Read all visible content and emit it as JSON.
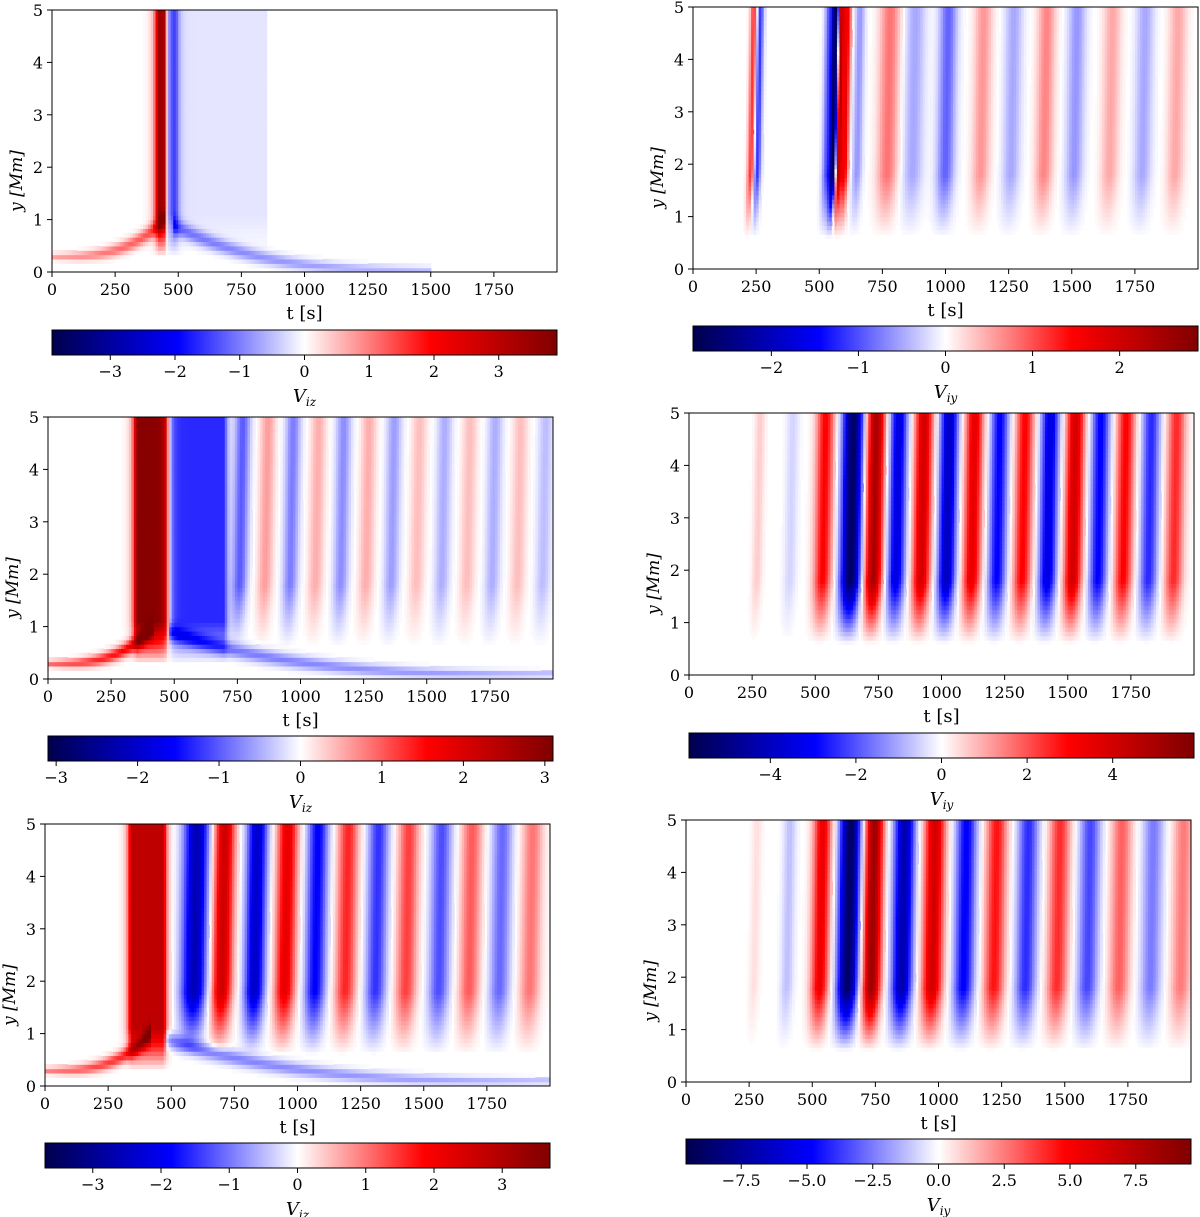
{
  "chart_data": [
    {
      "type": "heatmap",
      "panel": "top-left",
      "xlabel": "t [s]",
      "ylabel": "y [Mm]",
      "xlim": [
        0,
        2000
      ],
      "ylim": [
        0,
        5
      ],
      "xticks": [
        "0",
        "250",
        "500",
        "750",
        "1000",
        "1250",
        "1500",
        "1750"
      ],
      "yticks": [
        "0",
        "1",
        "2",
        "3",
        "4",
        "5"
      ],
      "colorbar": {
        "label": "V",
        "sub": "iz",
        "range": [
          -3.9,
          3.9
        ],
        "ticks": [
          "−3",
          "−2",
          "−1",
          "0",
          "1",
          "2",
          "3"
        ],
        "cmap": "seismic"
      },
      "features": [
        {
          "kind": "band",
          "t0": 420,
          "t1": 445,
          "value": 3.6
        },
        {
          "kind": "band",
          "t0": 460,
          "t1": 490,
          "value": -1.6
        },
        {
          "kind": "decay",
          "t0": 490,
          "t1": 850,
          "value": -0.2
        },
        {
          "kind": "fan",
          "apex_t": 445,
          "apex_y": 1.0,
          "end_t": 0,
          "end_y": 0.3,
          "value": 1.4
        },
        {
          "kind": "fan",
          "apex_t": 480,
          "apex_y": 0.9,
          "end_t": 1500,
          "end_y": 0.05,
          "value": -1.0
        }
      ]
    },
    {
      "type": "heatmap",
      "panel": "top-right",
      "xlabel": "t [s]",
      "ylabel": "y [Mm]",
      "xlim": [
        0,
        2000
      ],
      "ylim": [
        0,
        5
      ],
      "xticks": [
        "0",
        "250",
        "500",
        "750",
        "1000",
        "1250",
        "1500",
        "1750"
      ],
      "yticks": [
        "0",
        "1",
        "2",
        "3",
        "4",
        "5"
      ],
      "colorbar": {
        "label": "V",
        "sub": "iy",
        "range": [
          -2.9,
          2.9
        ],
        "ticks": [
          "−2",
          "−1",
          "0",
          "1",
          "2"
        ],
        "cmap": "seismic"
      },
      "features": [
        {
          "kind": "tilted",
          "t": 230,
          "w": 14,
          "value": 1.2
        },
        {
          "kind": "tilted",
          "t": 255,
          "w": 14,
          "value": -1.2
        },
        {
          "kind": "tilted",
          "t": 530,
          "w": 18,
          "value": -1.0
        },
        {
          "kind": "tilted",
          "t": 555,
          "w": 14,
          "value": -2.8
        },
        {
          "kind": "tilted",
          "t": 575,
          "w": 12,
          "value": 2.4
        },
        {
          "kind": "tilted",
          "t": 600,
          "w": 16,
          "value": 1.6
        },
        {
          "kind": "tilted",
          "t": 650,
          "w": 20,
          "value": -0.6
        },
        {
          "kind": "tilted",
          "t": 770,
          "w": 40,
          "value": 0.8
        },
        {
          "kind": "tilted",
          "t": 870,
          "w": 40,
          "value": -0.5
        },
        {
          "kind": "tilted",
          "t": 1000,
          "w": 35,
          "value": -0.9
        },
        {
          "kind": "tilted",
          "t": 1140,
          "w": 35,
          "value": 0.6
        },
        {
          "kind": "tilted",
          "t": 1260,
          "w": 35,
          "value": -0.5
        },
        {
          "kind": "tilted",
          "t": 1390,
          "w": 35,
          "value": 0.7
        },
        {
          "kind": "tilted",
          "t": 1510,
          "w": 35,
          "value": -0.6
        },
        {
          "kind": "tilted",
          "t": 1650,
          "w": 35,
          "value": 0.5
        },
        {
          "kind": "tilted",
          "t": 1780,
          "w": 35,
          "value": -0.5
        },
        {
          "kind": "tilted",
          "t": 1910,
          "w": 35,
          "value": 0.5
        }
      ]
    },
    {
      "type": "heatmap",
      "panel": "middle-left",
      "xlabel": "t [s]",
      "ylabel": "y [Mm]",
      "xlim": [
        0,
        2000
      ],
      "ylim": [
        0,
        5
      ],
      "xticks": [
        "0",
        "250",
        "500",
        "750",
        "1000",
        "1250",
        "1500",
        "1750"
      ],
      "yticks": [
        "0",
        "1",
        "2",
        "3",
        "4",
        "5"
      ],
      "colorbar": {
        "label": "V",
        "sub": "iz",
        "range": [
          -3.1,
          3.1
        ],
        "ticks": [
          "−3",
          "−2",
          "−1",
          "0",
          "1",
          "2",
          "3"
        ],
        "cmap": "seismic"
      },
      "features": [
        {
          "kind": "band",
          "t0": 350,
          "t1": 470,
          "value": 3.0
        },
        {
          "kind": "band",
          "t0": 470,
          "t1": 700,
          "value": -1.3
        },
        {
          "kind": "tilted",
          "t": 760,
          "w": 30,
          "value": -1.0
        },
        {
          "kind": "tilted",
          "t": 860,
          "w": 30,
          "value": 0.6
        },
        {
          "kind": "tilted",
          "t": 960,
          "w": 30,
          "value": -0.8
        },
        {
          "kind": "tilted",
          "t": 1060,
          "w": 30,
          "value": 0.5
        },
        {
          "kind": "tilted",
          "t": 1160,
          "w": 30,
          "value": -0.7
        },
        {
          "kind": "tilted",
          "t": 1260,
          "w": 30,
          "value": 0.5
        },
        {
          "kind": "tilted",
          "t": 1360,
          "w": 30,
          "value": -0.6
        },
        {
          "kind": "tilted",
          "t": 1460,
          "w": 30,
          "value": 0.4
        },
        {
          "kind": "tilted",
          "t": 1560,
          "w": 30,
          "value": -0.5
        },
        {
          "kind": "tilted",
          "t": 1660,
          "w": 30,
          "value": 0.4
        },
        {
          "kind": "tilted",
          "t": 1760,
          "w": 30,
          "value": -0.5
        },
        {
          "kind": "tilted",
          "t": 1860,
          "w": 30,
          "value": 0.4
        },
        {
          "kind": "tilted",
          "t": 1960,
          "w": 30,
          "value": -0.4
        },
        {
          "kind": "fan",
          "apex_t": 420,
          "apex_y": 1.0,
          "end_t": 0,
          "end_y": 0.3,
          "value": 1.8
        },
        {
          "kind": "fan",
          "apex_t": 480,
          "apex_y": 0.9,
          "end_t": 2000,
          "end_y": 0.1,
          "value": -0.9
        }
      ]
    },
    {
      "type": "heatmap",
      "panel": "middle-right",
      "xlabel": "t [s]",
      "ylabel": "y [Mm]",
      "xlim": [
        0,
        2000
      ],
      "ylim": [
        0,
        5
      ],
      "xticks": [
        "0",
        "250",
        "500",
        "750",
        "1000",
        "1250",
        "1500",
        "1750"
      ],
      "yticks": [
        "0",
        "1",
        "2",
        "3",
        "4",
        "5"
      ],
      "colorbar": {
        "label": "V",
        "sub": "iy",
        "range": [
          -5.9,
          5.9
        ],
        "ticks": [
          "−4",
          "−2",
          "0",
          "2",
          "4"
        ],
        "cmap": "seismic"
      },
      "features": [
        {
          "kind": "tilted",
          "t": 270,
          "w": 20,
          "value": 0.6
        },
        {
          "kind": "tilted",
          "t": 400,
          "w": 25,
          "value": -0.5
        },
        {
          "kind": "tilted",
          "t": 530,
          "w": 35,
          "value": 3.0
        },
        {
          "kind": "tilted",
          "t": 640,
          "w": 40,
          "value": -5.5
        },
        {
          "kind": "tilted",
          "t": 730,
          "w": 35,
          "value": 5.0
        },
        {
          "kind": "tilted",
          "t": 820,
          "w": 35,
          "value": -3.5
        },
        {
          "kind": "tilted",
          "t": 920,
          "w": 35,
          "value": 4.0
        },
        {
          "kind": "tilted",
          "t": 1020,
          "w": 35,
          "value": -4.0
        },
        {
          "kind": "tilted",
          "t": 1120,
          "w": 35,
          "value": 3.5
        },
        {
          "kind": "tilted",
          "t": 1220,
          "w": 35,
          "value": -3.0
        },
        {
          "kind": "tilted",
          "t": 1320,
          "w": 35,
          "value": 3.0
        },
        {
          "kind": "tilted",
          "t": 1420,
          "w": 35,
          "value": -3.5
        },
        {
          "kind": "tilted",
          "t": 1520,
          "w": 35,
          "value": 4.0
        },
        {
          "kind": "tilted",
          "t": 1620,
          "w": 35,
          "value": -3.0
        },
        {
          "kind": "tilted",
          "t": 1720,
          "w": 35,
          "value": 3.0
        },
        {
          "kind": "tilted",
          "t": 1820,
          "w": 35,
          "value": -2.5
        },
        {
          "kind": "tilted",
          "t": 1920,
          "w": 35,
          "value": 2.5
        }
      ]
    },
    {
      "type": "heatmap",
      "panel": "bottom-left",
      "xlabel": "t [s]",
      "ylabel": "y [Mm]",
      "xlim": [
        0,
        2000
      ],
      "ylim": [
        0,
        5
      ],
      "xticks": [
        "0",
        "250",
        "500",
        "750",
        "1000",
        "1250",
        "1500",
        "1750"
      ],
      "yticks": [
        "0",
        "1",
        "2",
        "3",
        "4",
        "5"
      ],
      "colorbar": {
        "label": "V",
        "sub": "iz",
        "range": [
          -3.7,
          3.7
        ],
        "ticks": [
          "−3",
          "−2",
          "−1",
          "0",
          "1",
          "2",
          "3"
        ],
        "cmap": "seismic"
      },
      "features": [
        {
          "kind": "band",
          "t0": 340,
          "t1": 470,
          "value": 2.8
        },
        {
          "kind": "tilted",
          "t": 590,
          "w": 50,
          "value": -2.6
        },
        {
          "kind": "tilted",
          "t": 700,
          "w": 40,
          "value": 2.6
        },
        {
          "kind": "tilted",
          "t": 830,
          "w": 40,
          "value": -2.4
        },
        {
          "kind": "tilted",
          "t": 950,
          "w": 40,
          "value": 2.2
        },
        {
          "kind": "tilted",
          "t": 1070,
          "w": 40,
          "value": -1.9
        },
        {
          "kind": "tilted",
          "t": 1190,
          "w": 40,
          "value": 1.6
        },
        {
          "kind": "tilted",
          "t": 1310,
          "w": 40,
          "value": -1.5
        },
        {
          "kind": "tilted",
          "t": 1430,
          "w": 40,
          "value": 1.4
        },
        {
          "kind": "tilted",
          "t": 1560,
          "w": 40,
          "value": -1.3
        },
        {
          "kind": "tilted",
          "t": 1680,
          "w": 40,
          "value": 1.2
        },
        {
          "kind": "tilted",
          "t": 1800,
          "w": 40,
          "value": -1.1
        },
        {
          "kind": "tilted",
          "t": 1920,
          "w": 40,
          "value": 1.0
        },
        {
          "kind": "fan",
          "apex_t": 420,
          "apex_y": 1.0,
          "end_t": 0,
          "end_y": 0.3,
          "value": 1.8
        },
        {
          "kind": "fan",
          "apex_t": 480,
          "apex_y": 0.9,
          "end_t": 2000,
          "end_y": 0.1,
          "value": -1.0
        }
      ]
    },
    {
      "type": "heatmap",
      "panel": "bottom-right",
      "xlabel": "t [s]",
      "ylabel": "y [Mm]",
      "xlim": [
        0,
        2000
      ],
      "ylim": [
        0,
        5
      ],
      "xticks": [
        "0",
        "250",
        "500",
        "750",
        "1000",
        "1250",
        "1500",
        "1750"
      ],
      "yticks": [
        "0",
        "1",
        "2",
        "3",
        "4",
        "5"
      ],
      "colorbar": {
        "label": "V",
        "sub": "iy",
        "range": [
          -9.6,
          9.6
        ],
        "ticks": [
          "−7.5",
          "−5.0",
          "−2.5",
          "0.0",
          "2.5",
          "5.0",
          "7.5"
        ],
        "cmap": "seismic"
      },
      "features": [
        {
          "kind": "tilted",
          "t": 270,
          "w": 20,
          "value": 0.6
        },
        {
          "kind": "tilted",
          "t": 400,
          "w": 25,
          "value": -1.2
        },
        {
          "kind": "tilted",
          "t": 530,
          "w": 35,
          "value": 5.5
        },
        {
          "kind": "tilted",
          "t": 640,
          "w": 40,
          "value": -9.0
        },
        {
          "kind": "tilted",
          "t": 735,
          "w": 35,
          "value": 8.5
        },
        {
          "kind": "tilted",
          "t": 855,
          "w": 40,
          "value": -7.0
        },
        {
          "kind": "tilted",
          "t": 975,
          "w": 40,
          "value": 6.5
        },
        {
          "kind": "tilted",
          "t": 1100,
          "w": 40,
          "value": -5.0
        },
        {
          "kind": "tilted",
          "t": 1220,
          "w": 40,
          "value": 4.5
        },
        {
          "kind": "tilted",
          "t": 1345,
          "w": 40,
          "value": -4.0
        },
        {
          "kind": "tilted",
          "t": 1470,
          "w": 40,
          "value": 4.0
        },
        {
          "kind": "tilted",
          "t": 1590,
          "w": 40,
          "value": -3.5
        },
        {
          "kind": "tilted",
          "t": 1715,
          "w": 40,
          "value": 3.0
        },
        {
          "kind": "tilted",
          "t": 1840,
          "w": 40,
          "value": -2.5
        },
        {
          "kind": "tilted",
          "t": 1960,
          "w": 40,
          "value": 2.5
        }
      ]
    }
  ]
}
